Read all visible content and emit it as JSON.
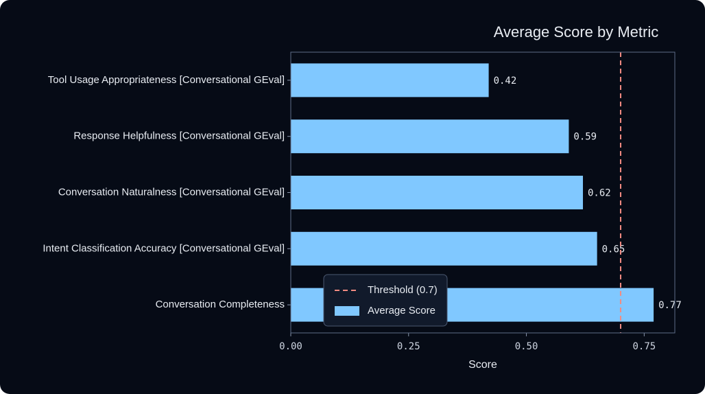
{
  "chart_data": {
    "type": "bar",
    "orientation": "horizontal",
    "title": "Average Score by Metric",
    "x_label": "Score",
    "categories": [
      "Tool Usage Appropriateness [Conversational GEval]",
      "Response Helpfulness [Conversational GEval]",
      "Conversation Naturalness [Conversational GEval]",
      "Intent Classification Accuracy [Conversational GEval]",
      "Conversation Completeness"
    ],
    "series": [
      {
        "name": "Average Score",
        "color": "#80c8ff",
        "values": [
          0.42,
          0.59,
          0.62,
          0.65,
          0.77
        ]
      }
    ],
    "threshold": {
      "name": "Threshold (0.7)",
      "value": 0.7,
      "color": "#f28b82"
    },
    "xlim": [
      0,
      0.815
    ],
    "xticks": [
      {
        "value": 0,
        "label": "0.00"
      },
      0.25,
      {
        "value": 0.5,
        "label": "0.50"
      },
      0.75
    ],
    "legend": "lower center",
    "grid": false
  }
}
